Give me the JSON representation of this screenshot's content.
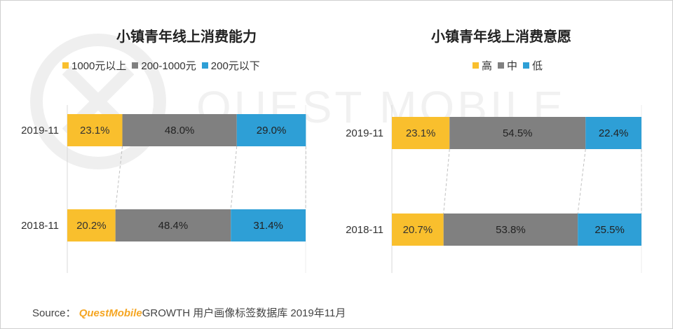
{
  "colors": {
    "high": "#f9bf2d",
    "mid": "#808080",
    "low": "#2e9fd6",
    "connector": "#c0c0c0",
    "axis": "#d9d9d9",
    "brand": "#f5a623"
  },
  "watermark_text": "QUEST MOBILE",
  "source": {
    "prefix": "Source：",
    "brand": "QuestMobile",
    "suffix": "GROWTH 用户画像标签数据库 2019年11月"
  },
  "chart_data": [
    {
      "type": "bar",
      "orientation": "horizontal",
      "stacked": "percent",
      "title": "小镇青年线上消费能力",
      "categories": [
        "2019-11",
        "2018-11"
      ],
      "series": [
        {
          "name": "1000元以上",
          "color": "#f9bf2d",
          "values": [
            23.1,
            20.2
          ],
          "labels": [
            "23.1%",
            "20.2%"
          ]
        },
        {
          "name": "200-1000元",
          "color": "#808080",
          "values": [
            48.0,
            48.4
          ],
          "labels": [
            "48.0%",
            "48.4%"
          ]
        },
        {
          "name": "200元以下",
          "color": "#2e9fd6",
          "values": [
            29.0,
            31.4
          ],
          "labels": [
            "29.0%",
            "31.4%"
          ]
        }
      ],
      "xlim": [
        0,
        100
      ],
      "legend_position": "top"
    },
    {
      "type": "bar",
      "orientation": "horizontal",
      "stacked": "percent",
      "title": "小镇青年线上消费意愿",
      "categories": [
        "2019-11",
        "2018-11"
      ],
      "series": [
        {
          "name": "高",
          "color": "#f9bf2d",
          "values": [
            23.1,
            20.7
          ],
          "labels": [
            "23.1%",
            "20.7%"
          ]
        },
        {
          "name": "中",
          "color": "#808080",
          "values": [
            54.5,
            53.8
          ],
          "labels": [
            "54.5%",
            "53.8%"
          ]
        },
        {
          "name": "低",
          "color": "#2e9fd6",
          "values": [
            22.4,
            25.5
          ],
          "labels": [
            "22.4%",
            "25.5%"
          ]
        }
      ],
      "xlim": [
        0,
        100
      ],
      "legend_position": "top"
    }
  ]
}
